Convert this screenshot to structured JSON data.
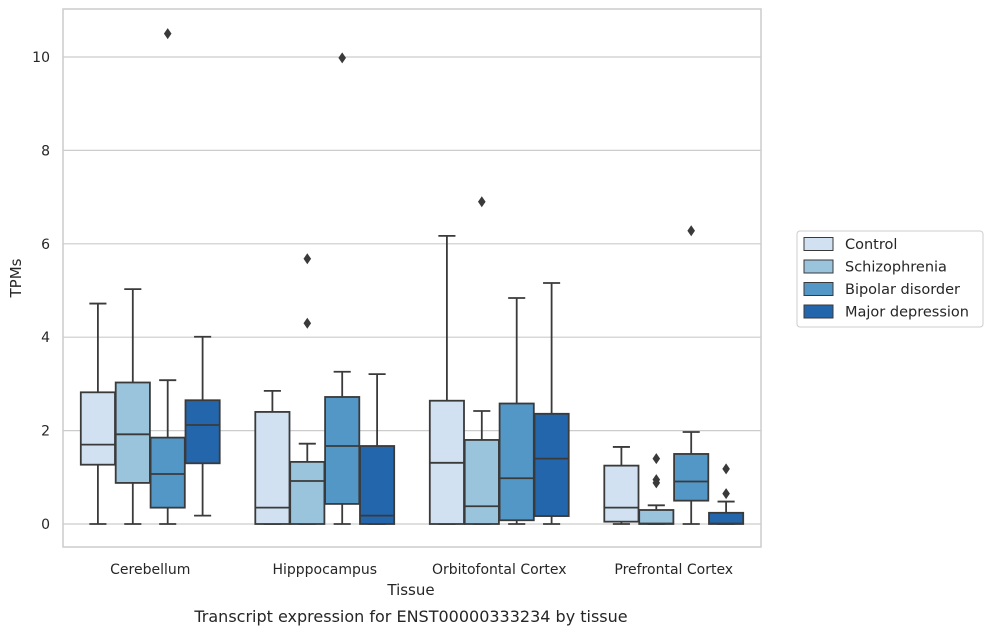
{
  "chart_data": {
    "type": "boxplot",
    "caption": "Transcript expression for ENST00000333234 by tissue",
    "xlabel": "Tissue",
    "ylabel": "TPMs",
    "ylim": [
      -0.5,
      11.0
    ],
    "yticks": [
      0,
      2,
      4,
      6,
      8,
      10
    ],
    "grid": "horizontal",
    "legend_position": "right",
    "categories": [
      "Cerebellum",
      "Hipppocampus",
      "Orbitofontal Cortex",
      "Prefrontal Cortex"
    ],
    "series": [
      {
        "name": "Control",
        "color": "#d1e1f1",
        "boxes": [
          {
            "whisker_low": 0,
            "q1": 1.27,
            "median": 1.7,
            "q3": 2.82,
            "whisker_high": 4.72,
            "outliers": []
          },
          {
            "whisker_low": 0,
            "q1": 0,
            "median": 0.35,
            "q3": 2.4,
            "whisker_high": 2.85,
            "outliers": []
          },
          {
            "whisker_low": 0,
            "q1": 0,
            "median": 1.31,
            "q3": 2.64,
            "whisker_high": 6.17,
            "outliers": []
          },
          {
            "whisker_low": 0,
            "q1": 0.05,
            "median": 0.35,
            "q3": 1.25,
            "whisker_high": 1.65,
            "outliers": []
          }
        ]
      },
      {
        "name": "Schizophrenia",
        "color": "#9ac3dc",
        "boxes": [
          {
            "whisker_low": 0,
            "q1": 0.88,
            "median": 1.92,
            "q3": 3.03,
            "whisker_high": 5.03,
            "outliers": []
          },
          {
            "whisker_low": 0,
            "q1": 0,
            "median": 0.92,
            "q3": 1.33,
            "whisker_high": 1.72,
            "outliers": [
              4.3,
              5.68
            ]
          },
          {
            "whisker_low": 0,
            "q1": 0,
            "median": 0.38,
            "q3": 1.8,
            "whisker_high": 2.42,
            "outliers": [
              6.9
            ]
          },
          {
            "whisker_low": 0,
            "q1": 0,
            "median": 0.01,
            "q3": 0.3,
            "whisker_high": 0.4,
            "outliers": [
              0.88,
              0.95,
              1.4
            ]
          }
        ]
      },
      {
        "name": "Bipolar disorder",
        "color": "#5397c7",
        "boxes": [
          {
            "whisker_low": 0,
            "q1": 0.35,
            "median": 1.07,
            "q3": 1.85,
            "whisker_high": 3.08,
            "outliers": [
              10.5
            ]
          },
          {
            "whisker_low": 0,
            "q1": 0.43,
            "median": 1.67,
            "q3": 2.72,
            "whisker_high": 3.26,
            "outliers": [
              9.98
            ]
          },
          {
            "whisker_low": 0,
            "q1": 0.08,
            "median": 0.98,
            "q3": 2.58,
            "whisker_high": 4.84,
            "outliers": []
          },
          {
            "whisker_low": 0,
            "q1": 0.5,
            "median": 0.91,
            "q3": 1.5,
            "whisker_high": 1.97,
            "outliers": [
              6.28
            ]
          }
        ]
      },
      {
        "name": "Major depression",
        "color": "#2466ac",
        "boxes": [
          {
            "whisker_low": 0.18,
            "q1": 1.3,
            "median": 2.12,
            "q3": 2.65,
            "whisker_high": 4.01,
            "outliers": []
          },
          {
            "whisker_low": 0,
            "q1": 0,
            "median": 0.18,
            "q3": 1.67,
            "whisker_high": 3.21,
            "outliers": []
          },
          {
            "whisker_low": 0,
            "q1": 0.17,
            "median": 1.4,
            "q3": 2.36,
            "whisker_high": 5.16,
            "outliers": []
          },
          {
            "whisker_low": 0,
            "q1": 0,
            "median": 0.01,
            "q3": 0.24,
            "whisker_high": 0.48,
            "outliers": [
              0.65,
              1.18
            ]
          }
        ]
      }
    ]
  }
}
